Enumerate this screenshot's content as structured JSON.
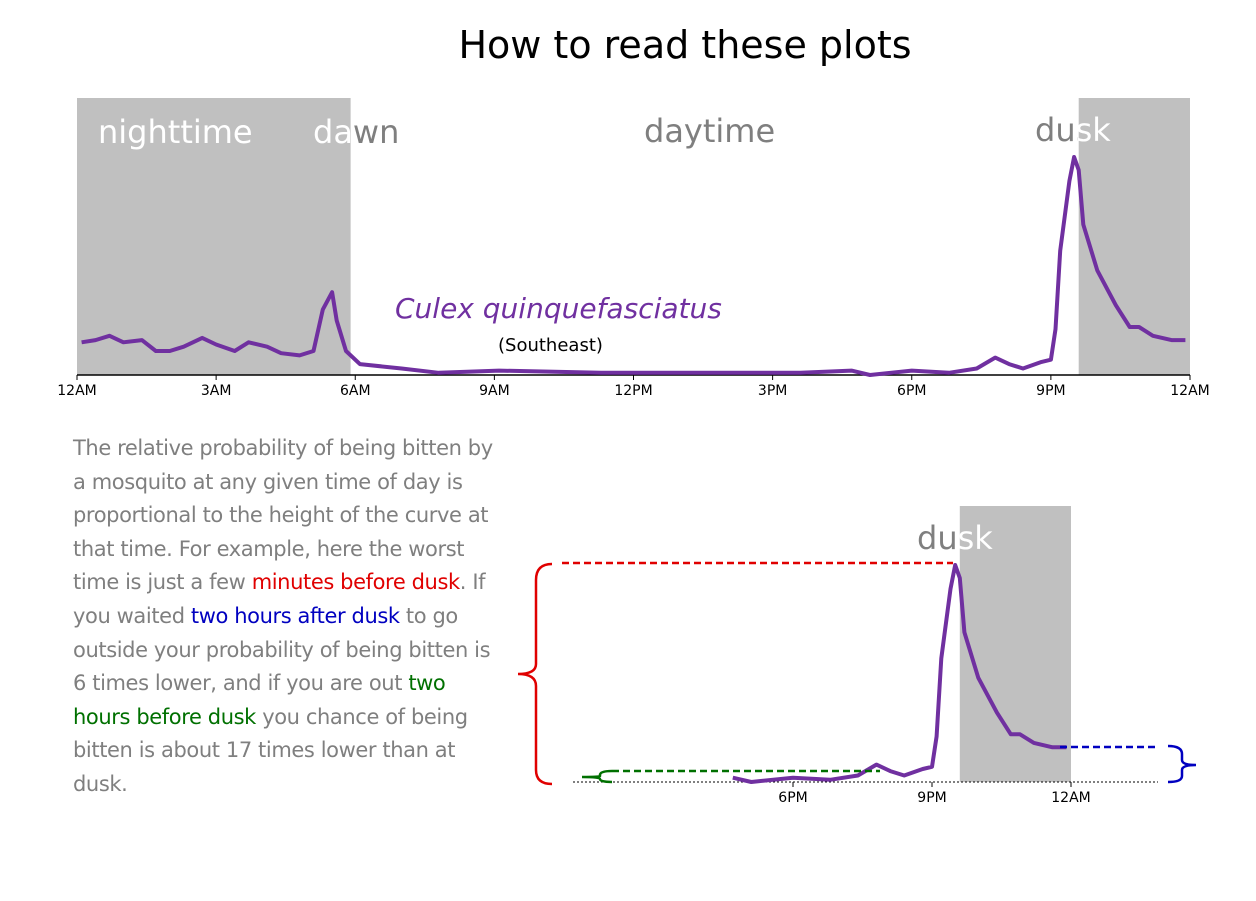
{
  "title": "How to read these plots",
  "chart_data": {
    "type": "line",
    "series_label": "Culex quinquefasciatus",
    "region": "(Southeast)",
    "color": "#7030a0",
    "shade_color": "#c0c0c0",
    "shaded": [
      [
        0,
        5.9
      ],
      [
        21.6,
        24
      ]
    ],
    "period_labels": [
      "nighttime",
      "dawn",
      "daytime",
      "dusk"
    ],
    "xlim": [
      0,
      24
    ],
    "ylim": [
      0,
      100
    ],
    "xticks": [
      {
        "value": 0,
        "label": "12AM"
      },
      {
        "value": 3,
        "label": "3AM"
      },
      {
        "value": 6,
        "label": "6AM"
      },
      {
        "value": 9,
        "label": "9AM"
      },
      {
        "value": 12,
        "label": "12PM"
      },
      {
        "value": 15,
        "label": "3PM"
      },
      {
        "value": 18,
        "label": "6PM"
      },
      {
        "value": 21,
        "label": "9PM"
      },
      {
        "value": 24,
        "label": "12AM"
      }
    ],
    "x": [
      0.1,
      0.4,
      0.7,
      1.0,
      1.4,
      1.7,
      2.0,
      2.3,
      2.7,
      3.0,
      3.4,
      3.7,
      4.1,
      4.4,
      4.8,
      5.1,
      5.3,
      5.5,
      5.6,
      5.8,
      6.1,
      7.0,
      7.8,
      9.1,
      11.3,
      13.4,
      15.6,
      16.7,
      17.1,
      18.0,
      18.8,
      19.4,
      19.8,
      20.1,
      20.4,
      20.8,
      21.0,
      21.1,
      21.2,
      21.4,
      21.5,
      21.6,
      21.7,
      22.0,
      22.4,
      22.7,
      22.9,
      23.2,
      23.6,
      23.9
    ],
    "values": [
      15,
      16,
      18,
      15,
      16,
      11,
      11,
      13,
      17,
      14,
      11,
      15,
      13,
      10,
      9,
      11,
      30,
      38,
      25,
      11,
      5,
      3,
      1,
      2,
      1,
      1,
      1,
      2,
      0,
      2,
      1,
      3,
      8,
      5,
      3,
      6,
      7,
      21,
      57,
      89,
      100,
      94,
      69,
      48,
      32,
      22,
      22,
      18,
      16,
      16
    ],
    "zoom": {
      "label": "dusk",
      "xlim": [
        16.4,
        24
      ],
      "xticks": [
        {
          "value": 18,
          "label": "6PM"
        },
        {
          "value": 21,
          "label": "9PM"
        },
        {
          "value": 24,
          "label": "12AM"
        }
      ]
    }
  },
  "explanation": [
    "The relative probability of being bitten by a mosquito at any given time of day is proportional to the height of the curve at that time. For example, here the worst time is just a few ",
    "minutes before dusk",
    ". If you waited ",
    "two hours after dusk",
    " to go outside your probability of being bitten is 6 times lower, and if you are out ",
    "two hours before dusk",
    " you chance of being bitten is about 17 times lower than at dusk."
  ]
}
